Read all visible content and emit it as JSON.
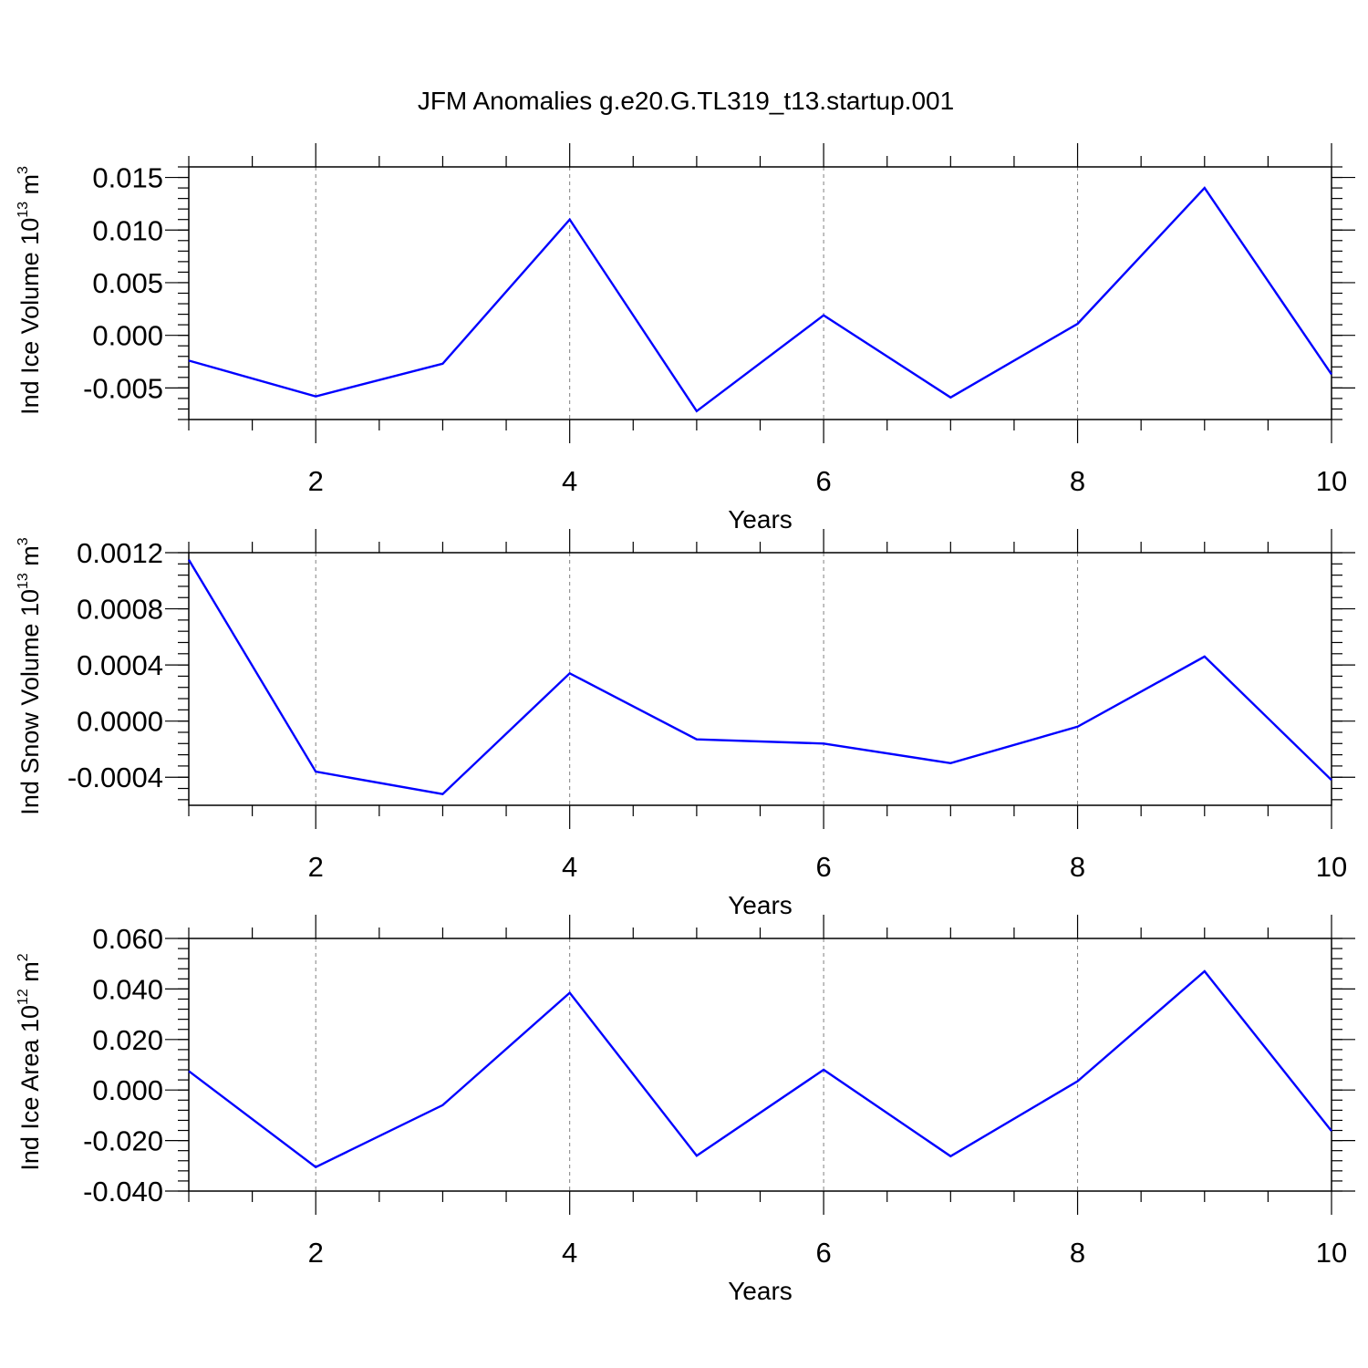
{
  "page": {
    "title": "JFM Anomalies g.e20.G.TL319_t13.startup.001"
  },
  "colors": {
    "line": "#0000ff",
    "axis": "#000000",
    "grid": "#808080"
  },
  "chart_data": [
    {
      "type": "line",
      "xlabel": "Years",
      "ylabel": {
        "text": "Ind Ice Volume 10",
        "exp": "13",
        "unit": " m",
        "unit_exp": "3"
      },
      "xlim": [
        1,
        10
      ],
      "ylim": [
        -0.008,
        0.016
      ],
      "xticks": [
        2,
        4,
        6,
        8,
        10
      ],
      "xtick_labels": [
        "2",
        "4",
        "6",
        "8",
        "10"
      ],
      "yticks": [
        -0.005,
        0.0,
        0.005,
        0.01,
        0.015
      ],
      "ytick_labels": [
        "-0.005",
        "0.000",
        "0.005",
        "0.010",
        "0.015"
      ],
      "grid": "vertical dashed at major x ticks",
      "series": [
        {
          "x": [
            1,
            2,
            3,
            4,
            5,
            6,
            7,
            8,
            9,
            10
          ],
          "y": [
            -0.0024,
            -0.0058,
            -0.0027,
            0.011,
            -0.0072,
            0.0019,
            -0.0059,
            0.0011,
            0.014,
            -0.0037
          ]
        }
      ]
    },
    {
      "type": "line",
      "xlabel": "Years",
      "ylabel": {
        "text": "Ind Snow Volume 10",
        "exp": "13",
        "unit": " m",
        "unit_exp": "3"
      },
      "xlim": [
        1,
        10
      ],
      "ylim": [
        -0.0006,
        0.0012
      ],
      "xticks": [
        2,
        4,
        6,
        8,
        10
      ],
      "xtick_labels": [
        "2",
        "4",
        "6",
        "8",
        "10"
      ],
      "yticks": [
        -0.0004,
        0.0,
        0.0004,
        0.0008,
        0.0012
      ],
      "ytick_labels": [
        "-0.0004",
        "0.0000",
        "0.0004",
        "0.0008",
        "0.0012"
      ],
      "grid": "vertical dashed at major x ticks",
      "series": [
        {
          "x": [
            1,
            2,
            3,
            4,
            5,
            6,
            7,
            8,
            9,
            10
          ],
          "y": [
            0.00115,
            -0.00036,
            -0.00052,
            0.00034,
            -0.00013,
            -0.00016,
            -0.0003,
            -4e-05,
            0.00046,
            -0.00042
          ]
        }
      ]
    },
    {
      "type": "line",
      "xlabel": "Years",
      "ylabel": {
        "text": "Ind Ice Area 10",
        "exp": "12",
        "unit": " m",
        "unit_exp": "2"
      },
      "xlim": [
        1,
        10
      ],
      "ylim": [
        -0.04,
        0.06
      ],
      "xticks": [
        2,
        4,
        6,
        8,
        10
      ],
      "xtick_labels": [
        "2",
        "4",
        "6",
        "8",
        "10"
      ],
      "yticks": [
        -0.04,
        -0.02,
        0.0,
        0.02,
        0.04,
        0.06
      ],
      "ytick_labels": [
        "-0.040",
        "-0.020",
        "0.000",
        "0.020",
        "0.040",
        "0.060"
      ],
      "grid": "vertical dashed at major x ticks",
      "series": [
        {
          "x": [
            1,
            2,
            3,
            4,
            5,
            6,
            7,
            8,
            9,
            10
          ],
          "y": [
            0.0075,
            -0.0305,
            -0.006,
            0.0385,
            -0.026,
            0.008,
            -0.0262,
            0.0035,
            0.047,
            -0.0162
          ]
        }
      ]
    }
  ]
}
